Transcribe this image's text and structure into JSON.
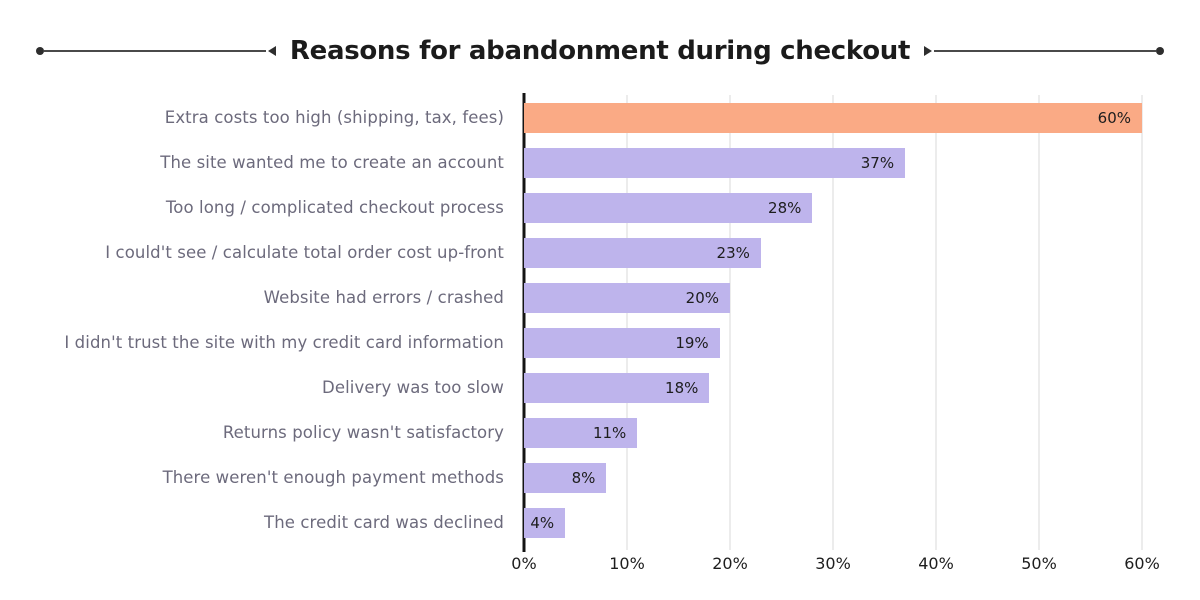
{
  "title": "Reasons for abandonment during checkout",
  "chart_data": {
    "type": "bar",
    "orientation": "horizontal",
    "title": "Reasons for abandonment during checkout",
    "categories": [
      "Extra costs too high (shipping, tax, fees)",
      "The site wanted me to create an account",
      "Too long / complicated checkout process",
      "I could't see / calculate total order cost up-front",
      "Website had errors / crashed",
      "I didn't trust the site with my credit card information",
      "Delivery was too slow",
      "Returns policy wasn't satisfactory",
      "There weren't enough payment methods",
      "The credit card was declined"
    ],
    "values": [
      60,
      37,
      28,
      23,
      20,
      19,
      18,
      11,
      8,
      4
    ],
    "value_labels": [
      "60%",
      "37%",
      "28%",
      "23%",
      "20%",
      "19%",
      "18%",
      "11%",
      "8%",
      "4%"
    ],
    "x_ticks": [
      "0%",
      "10%",
      "20%",
      "30%",
      "40%",
      "50%",
      "60%"
    ],
    "xlim": [
      0,
      60
    ],
    "xlabel": "",
    "ylabel": "",
    "grid": "vertical",
    "legend": "none",
    "highlight_index": 0,
    "colors": {
      "highlight_bar": "#FAAA85",
      "bar": "#BEB4EC",
      "grid": "#d9d9d9",
      "axis": "#141414",
      "category_label": "#6c6a7c",
      "value_label": "#1d1d1d",
      "tick_label": "#1d1d1d"
    }
  }
}
